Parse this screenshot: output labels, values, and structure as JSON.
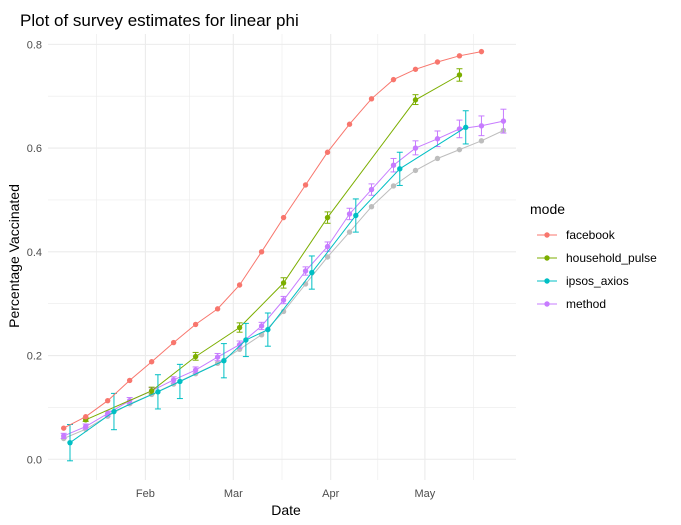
{
  "chart_data": {
    "type": "line",
    "title": "Plot of survey estimates for linear phi",
    "xlabel": "Date",
    "ylabel": "Percentage Vaccinated",
    "x_tick_labels": [
      {
        "label": "Feb",
        "date": "2021-02-01"
      },
      {
        "label": "Mar",
        "date": "2021-03-01"
      },
      {
        "label": "Apr",
        "date": "2021-04-01"
      },
      {
        "label": "May",
        "date": "2021-05-01"
      }
    ],
    "xlim": [
      "2021-01-01",
      "2021-05-30"
    ],
    "ylim": [
      -0.04,
      0.82
    ],
    "y_ticks": [
      0.0,
      0.2,
      0.4,
      0.6,
      0.8
    ],
    "y_tick_labels": [
      "0.0",
      "0.2",
      "0.4",
      "0.6",
      "0.8"
    ],
    "grid": true,
    "legend": {
      "title": "mode",
      "position": "right"
    },
    "series": [
      {
        "name": "(unlabeled grey)",
        "color": "#bdbdbd",
        "in_legend": false,
        "points": [
          {
            "x": "2021-01-06",
            "y": 0.04
          },
          {
            "x": "2021-01-13",
            "y": 0.058
          },
          {
            "x": "2021-01-20",
            "y": 0.083
          },
          {
            "x": "2021-01-27",
            "y": 0.107
          },
          {
            "x": "2021-02-03",
            "y": 0.125
          },
          {
            "x": "2021-02-10",
            "y": 0.145
          },
          {
            "x": "2021-02-17",
            "y": 0.165
          },
          {
            "x": "2021-02-24",
            "y": 0.185
          },
          {
            "x": "2021-03-03",
            "y": 0.212
          },
          {
            "x": "2021-03-10",
            "y": 0.24
          },
          {
            "x": "2021-03-17",
            "y": 0.285
          },
          {
            "x": "2021-03-24",
            "y": 0.338
          },
          {
            "x": "2021-03-31",
            "y": 0.39
          },
          {
            "x": "2021-04-07",
            "y": 0.438
          },
          {
            "x": "2021-04-14",
            "y": 0.487
          },
          {
            "x": "2021-04-21",
            "y": 0.527
          },
          {
            "x": "2021-04-28",
            "y": 0.557
          },
          {
            "x": "2021-05-05",
            "y": 0.58
          },
          {
            "x": "2021-05-12",
            "y": 0.597
          },
          {
            "x": "2021-05-19",
            "y": 0.614
          },
          {
            "x": "2021-05-26",
            "y": 0.634
          }
        ]
      },
      {
        "name": "method",
        "color": "#c77cff",
        "in_legend": true,
        "points": [
          {
            "x": "2021-01-06",
            "y": 0.045,
            "lo": 0.04,
            "hi": 0.05
          },
          {
            "x": "2021-01-13",
            "y": 0.063,
            "lo": 0.058,
            "hi": 0.068
          },
          {
            "x": "2021-01-20",
            "y": 0.088,
            "lo": 0.083,
            "hi": 0.093
          },
          {
            "x": "2021-01-27",
            "y": 0.113,
            "lo": 0.107,
            "hi": 0.119
          },
          {
            "x": "2021-02-03",
            "y": 0.132,
            "lo": 0.126,
            "hi": 0.138
          },
          {
            "x": "2021-02-10",
            "y": 0.153,
            "lo": 0.147,
            "hi": 0.159
          },
          {
            "x": "2021-02-17",
            "y": 0.172,
            "lo": 0.166,
            "hi": 0.178
          },
          {
            "x": "2021-02-24",
            "y": 0.197,
            "lo": 0.19,
            "hi": 0.204
          },
          {
            "x": "2021-03-03",
            "y": 0.221,
            "lo": 0.214,
            "hi": 0.228
          },
          {
            "x": "2021-03-10",
            "y": 0.257,
            "lo": 0.25,
            "hi": 0.264
          },
          {
            "x": "2021-03-17",
            "y": 0.307,
            "lo": 0.3,
            "hi": 0.314
          },
          {
            "x": "2021-03-24",
            "y": 0.363,
            "lo": 0.355,
            "hi": 0.371
          },
          {
            "x": "2021-03-31",
            "y": 0.41,
            "lo": 0.401,
            "hi": 0.419
          },
          {
            "x": "2021-04-07",
            "y": 0.473,
            "lo": 0.462,
            "hi": 0.484
          },
          {
            "x": "2021-04-14",
            "y": 0.52,
            "lo": 0.509,
            "hi": 0.531
          },
          {
            "x": "2021-04-21",
            "y": 0.567,
            "lo": 0.554,
            "hi": 0.58
          },
          {
            "x": "2021-04-28",
            "y": 0.6,
            "lo": 0.587,
            "hi": 0.614
          },
          {
            "x": "2021-05-05",
            "y": 0.618,
            "lo": 0.603,
            "hi": 0.633
          },
          {
            "x": "2021-05-12",
            "y": 0.637,
            "lo": 0.62,
            "hi": 0.654
          },
          {
            "x": "2021-05-19",
            "y": 0.643,
            "lo": 0.624,
            "hi": 0.662
          },
          {
            "x": "2021-05-26",
            "y": 0.652,
            "lo": 0.629,
            "hi": 0.675
          }
        ]
      },
      {
        "name": "household_pulse",
        "color": "#7cae00",
        "in_legend": true,
        "points": [
          {
            "x": "2021-01-13",
            "y": 0.076,
            "lo": 0.073,
            "hi": 0.08
          },
          {
            "x": "2021-02-03",
            "y": 0.132,
            "lo": 0.126,
            "hi": 0.139
          },
          {
            "x": "2021-02-17",
            "y": 0.198,
            "lo": 0.191,
            "hi": 0.206
          },
          {
            "x": "2021-03-03",
            "y": 0.254,
            "lo": 0.245,
            "hi": 0.263
          },
          {
            "x": "2021-03-17",
            "y": 0.34,
            "lo": 0.33,
            "hi": 0.35
          },
          {
            "x": "2021-03-31",
            "y": 0.466,
            "lo": 0.455,
            "hi": 0.477
          },
          {
            "x": "2021-04-28",
            "y": 0.693,
            "lo": 0.684,
            "hi": 0.703
          },
          {
            "x": "2021-05-12",
            "y": 0.741,
            "lo": 0.729,
            "hi": 0.753
          }
        ]
      },
      {
        "name": "ipsos_axios",
        "color": "#00bfc4",
        "in_legend": true,
        "points": [
          {
            "x": "2021-01-08",
            "y": 0.032,
            "lo": -0.003,
            "hi": 0.067
          },
          {
            "x": "2021-01-22",
            "y": 0.092,
            "lo": 0.057,
            "hi": 0.127
          },
          {
            "x": "2021-02-05",
            "y": 0.13,
            "lo": 0.097,
            "hi": 0.163
          },
          {
            "x": "2021-02-12",
            "y": 0.15,
            "lo": 0.117,
            "hi": 0.183
          },
          {
            "x": "2021-02-26",
            "y": 0.19,
            "lo": 0.157,
            "hi": 0.223
          },
          {
            "x": "2021-03-05",
            "y": 0.23,
            "lo": 0.198,
            "hi": 0.262
          },
          {
            "x": "2021-03-12",
            "y": 0.25,
            "lo": 0.218,
            "hi": 0.282
          },
          {
            "x": "2021-03-26",
            "y": 0.36,
            "lo": 0.328,
            "hi": 0.392
          },
          {
            "x": "2021-04-09",
            "y": 0.47,
            "lo": 0.438,
            "hi": 0.502
          },
          {
            "x": "2021-04-23",
            "y": 0.56,
            "lo": 0.528,
            "hi": 0.592
          },
          {
            "x": "2021-05-14",
            "y": 0.64,
            "lo": 0.608,
            "hi": 0.672
          }
        ]
      },
      {
        "name": "facebook",
        "color": "#f8766d",
        "in_legend": true,
        "points": [
          {
            "x": "2021-01-06",
            "y": 0.06
          },
          {
            "x": "2021-01-13",
            "y": 0.082
          },
          {
            "x": "2021-01-20",
            "y": 0.113
          },
          {
            "x": "2021-01-27",
            "y": 0.152
          },
          {
            "x": "2021-02-03",
            "y": 0.188
          },
          {
            "x": "2021-02-10",
            "y": 0.225
          },
          {
            "x": "2021-02-17",
            "y": 0.26
          },
          {
            "x": "2021-02-24",
            "y": 0.29
          },
          {
            "x": "2021-03-03",
            "y": 0.336
          },
          {
            "x": "2021-03-10",
            "y": 0.4
          },
          {
            "x": "2021-03-17",
            "y": 0.466
          },
          {
            "x": "2021-03-24",
            "y": 0.529
          },
          {
            "x": "2021-03-31",
            "y": 0.592
          },
          {
            "x": "2021-04-07",
            "y": 0.646
          },
          {
            "x": "2021-04-14",
            "y": 0.695
          },
          {
            "x": "2021-04-21",
            "y": 0.732
          },
          {
            "x": "2021-04-28",
            "y": 0.752
          },
          {
            "x": "2021-05-05",
            "y": 0.766
          },
          {
            "x": "2021-05-12",
            "y": 0.778
          },
          {
            "x": "2021-05-19",
            "y": 0.786
          }
        ]
      }
    ],
    "legend_items": [
      {
        "label": "facebook",
        "color": "#f8766d"
      },
      {
        "label": "household_pulse",
        "color": "#7cae00"
      },
      {
        "label": "ipsos_axios",
        "color": "#00bfc4"
      },
      {
        "label": "method",
        "color": "#c77cff"
      }
    ]
  }
}
